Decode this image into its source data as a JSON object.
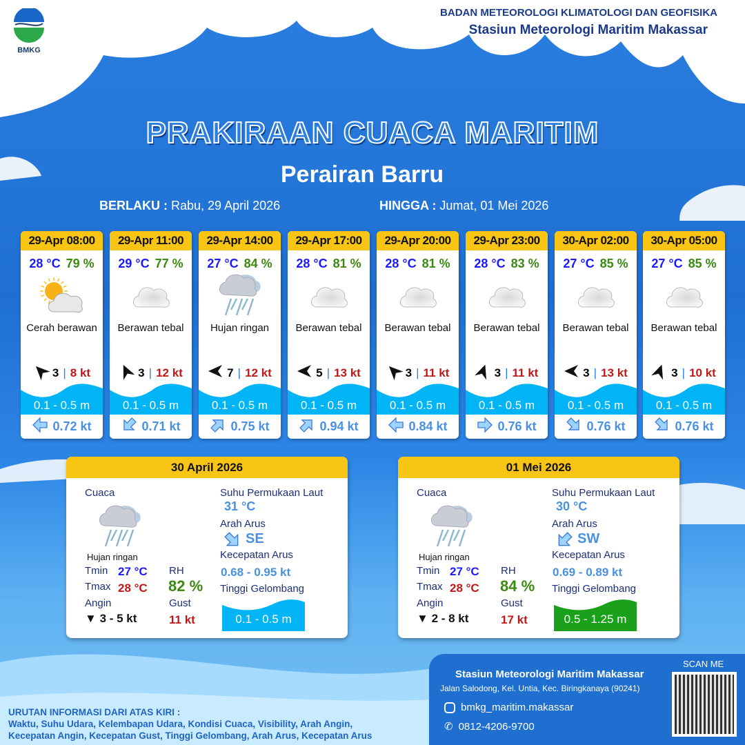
{
  "header": {
    "logo_text": "BMKG",
    "org": "BADAN METEOROLOGI KLIMATOLOGI DAN GEOFISIKA",
    "station": "Stasiun Meteorologi Maritim Makassar"
  },
  "title": "PRAKIRAAN CUACA MARITIM",
  "subtitle": "Perairan Barru",
  "validity": {
    "from_label": "BERLAKU :",
    "from": "Rabu, 29 April 2026",
    "to_label": "HINGGA :",
    "to": "Jumat, 01 Mei 2026"
  },
  "colors": {
    "header_yellow": "#f8c514",
    "temp": "#1a1aff",
    "humidity": "#3b8a12",
    "gust": "#c01818",
    "wave": "#00b4f5",
    "wave_high": "#1aa01a",
    "current": "#4a90e2"
  },
  "forecasts": [
    {
      "time": "29-Apr 08:00",
      "temp": "28 °C",
      "rh": "79 %",
      "icon": "partly-cloudy-icon",
      "condition": "Cerah berawan",
      "wind_dir_deg": -45,
      "wind": "3",
      "gust": "8 kt",
      "wave": "0.1 - 0.5 m",
      "current_dir_deg": -90,
      "current": "0.72 kt"
    },
    {
      "time": "29-Apr 11:00",
      "temp": "29 °C",
      "rh": "77 %",
      "icon": "cloud-icon",
      "condition": "Berawan tebal",
      "wind_dir_deg": -25,
      "wind": "3",
      "gust": "12 kt",
      "wave": "0.1 - 0.5 m",
      "current_dir_deg": -135,
      "current": "0.71 kt"
    },
    {
      "time": "29-Apr 14:00",
      "temp": "27 °C",
      "rh": "84 %",
      "icon": "rain-icon",
      "condition": "Hujan ringan",
      "wind_dir_deg": -90,
      "wind": "7",
      "gust": "12 kt",
      "wave": "0.1 - 0.5 m",
      "current_dir_deg": 45,
      "current": "0.75 kt"
    },
    {
      "time": "29-Apr 17:00",
      "temp": "28 °C",
      "rh": "81 %",
      "icon": "cloud-icon",
      "condition": "Berawan tebal",
      "wind_dir_deg": -90,
      "wind": "5",
      "gust": "13 kt",
      "wave": "0.1 - 0.5 m",
      "current_dir_deg": 45,
      "current": "0.94 kt"
    },
    {
      "time": "29-Apr 20:00",
      "temp": "28 °C",
      "rh": "81 %",
      "icon": "cloud-icon",
      "condition": "Berawan tebal",
      "wind_dir_deg": -45,
      "wind": "3",
      "gust": "11 kt",
      "wave": "0.1 - 0.5 m",
      "current_dir_deg": -90,
      "current": "0.84 kt"
    },
    {
      "time": "29-Apr 23:00",
      "temp": "28 °C",
      "rh": "83 %",
      "icon": "cloud-icon",
      "condition": "Berawan tebal",
      "wind_dir_deg": 20,
      "wind": "3",
      "gust": "11 kt",
      "wave": "0.1 - 0.5 m",
      "current_dir_deg": 90,
      "current": "0.76 kt"
    },
    {
      "time": "30-Apr 02:00",
      "temp": "27 °C",
      "rh": "85 %",
      "icon": "cloud-icon",
      "condition": "Berawan tebal",
      "wind_dir_deg": -90,
      "wind": "3",
      "gust": "13 kt",
      "wave": "0.1 - 0.5 m",
      "current_dir_deg": 135,
      "current": "0.76 kt"
    },
    {
      "time": "30-Apr 05:00",
      "temp": "27 °C",
      "rh": "85 %",
      "icon": "cloud-icon",
      "condition": "Berawan tebal",
      "wind_dir_deg": 20,
      "wind": "3",
      "gust": "10 kt",
      "wave": "0.1 - 0.5 m",
      "current_dir_deg": 135,
      "current": "0.76 kt"
    }
  ],
  "daily": [
    {
      "date": "30 April 2026",
      "cuaca_label": "Cuaca",
      "condition": "Hujan ringan",
      "tmin_label": "Tmin",
      "tmin": "27 °C",
      "tmax_label": "Tmax",
      "tmax": "28 °C",
      "rh_label": "RH",
      "rh": "82 %",
      "angin_label": "Angin",
      "angin": "3  - 5 kt",
      "gust_label": "Gust",
      "gust": "11 kt",
      "sst_label": "Suhu Permukaan Laut",
      "sst": "31 °C",
      "arus_label": "Arah Arus",
      "arus": "SE",
      "kec_label": "Kecepatan Arus",
      "kec": "0.68  - 0.95 kt",
      "wave_label": "Tinggi Gelombang",
      "wave": "0.1 - 0.5 m",
      "wave_color": "#00b4f5"
    },
    {
      "date": "01 Mei 2026",
      "cuaca_label": "Cuaca",
      "condition": "Hujan ringan",
      "tmin_label": "Tmin",
      "tmin": "27 °C",
      "tmax_label": "Tmax",
      "tmax": "28 °C",
      "rh_label": "RH",
      "rh": "84 %",
      "angin_label": "Angin",
      "angin": "2  - 8 kt",
      "gust_label": "Gust",
      "gust": "17 kt",
      "sst_label": "Suhu Permukaan Laut",
      "sst": "30 °C",
      "arus_label": "Arah Arus",
      "arus": "SW",
      "kec_label": "Kecepatan Arus",
      "kec": "0.69  - 0.89 kt",
      "wave_label": "Tinggi Gelombang",
      "wave": "0.5 - 1.25 m",
      "wave_color": "#1aa01a"
    }
  ],
  "legend": {
    "title": "URUTAN INFORMASI DARI ATAS KIRI :",
    "line1": "Waktu, Suhu Udara, Kelembapan Udara, Kondisi Cuaca, Visibility, Arah Angin,",
    "line2": "Kecepatan Angin, Kecepatan Gust, Tinggi Gelombang, Arah Arus, Kecepatan Arus"
  },
  "footer": {
    "station": "Stasiun Meteorologi Maritim Makassar",
    "address": "Jalan Salodong, Kel. Untia, Kec. Biringkanaya (90241)",
    "instagram": "bmkg_maritim.makassar",
    "phone": "0812-4206-9700",
    "scan": "SCAN ME"
  }
}
